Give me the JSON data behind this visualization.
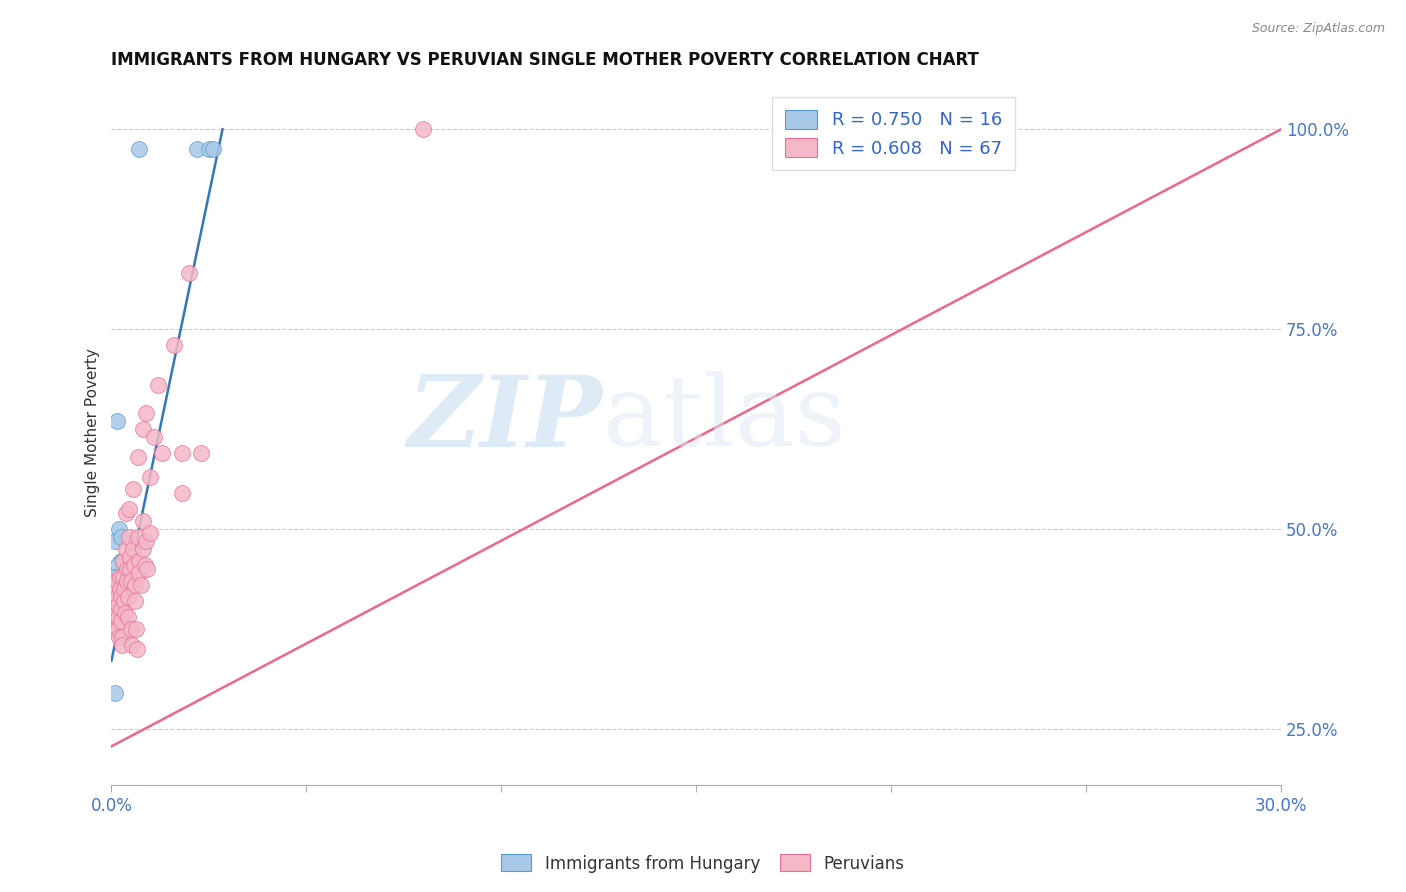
{
  "title": "IMMIGRANTS FROM HUNGARY VS PERUVIAN SINGLE MOTHER POVERTY CORRELATION CHART",
  "source": "Source: ZipAtlas.com",
  "ylabel": "Single Mother Poverty",
  "right_ytick_values": [
    0.25,
    0.5,
    0.75,
    1.0
  ],
  "right_ytick_labels": [
    "25.0%",
    "50.0%",
    "75.0%",
    "100.0%"
  ],
  "legend_blue_label": "Immigrants from Hungary",
  "legend_pink_label": "Peruvians",
  "blue_color": "#a8c8e8",
  "pink_color": "#f4b8c8",
  "blue_edge_color": "#5599cc",
  "pink_edge_color": "#e87090",
  "blue_line_color": "#3377bb",
  "pink_line_color": "#ee6688",
  "watermark_text": "ZIP",
  "watermark_text2": "atlas",
  "xlim": [
    0.0,
    0.3
  ],
  "ylim": [
    0.18,
    1.06
  ],
  "blue_points": [
    [
      0.0008,
      0.485
    ],
    [
      0.0008,
      0.295
    ],
    [
      0.0015,
      0.635
    ],
    [
      0.002,
      0.5
    ],
    [
      0.0025,
      0.49
    ],
    [
      0.0025,
      0.46
    ],
    [
      0.003,
      0.46
    ],
    [
      0.003,
      0.44
    ],
    [
      0.0035,
      0.44
    ],
    [
      0.004,
      0.44
    ],
    [
      0.0018,
      0.455
    ],
    [
      0.022,
      0.975
    ],
    [
      0.025,
      0.975
    ],
    [
      0.026,
      0.975
    ],
    [
      0.007,
      0.975
    ],
    [
      0.001,
      0.44
    ]
  ],
  "pink_points": [
    [
      0.0008,
      0.435
    ],
    [
      0.0008,
      0.42
    ],
    [
      0.001,
      0.41
    ],
    [
      0.001,
      0.395
    ],
    [
      0.001,
      0.385
    ],
    [
      0.0012,
      0.375
    ],
    [
      0.0015,
      0.435
    ],
    [
      0.0015,
      0.415
    ],
    [
      0.0018,
      0.405
    ],
    [
      0.0018,
      0.39
    ],
    [
      0.0018,
      0.375
    ],
    [
      0.002,
      0.365
    ],
    [
      0.0022,
      0.44
    ],
    [
      0.0022,
      0.425
    ],
    [
      0.0025,
      0.415
    ],
    [
      0.0025,
      0.4
    ],
    [
      0.0025,
      0.385
    ],
    [
      0.0028,
      0.365
    ],
    [
      0.0028,
      0.355
    ],
    [
      0.003,
      0.46
    ],
    [
      0.003,
      0.44
    ],
    [
      0.0032,
      0.425
    ],
    [
      0.0032,
      0.41
    ],
    [
      0.0035,
      0.395
    ],
    [
      0.0038,
      0.52
    ],
    [
      0.0038,
      0.475
    ],
    [
      0.004,
      0.45
    ],
    [
      0.004,
      0.435
    ],
    [
      0.0042,
      0.415
    ],
    [
      0.0042,
      0.39
    ],
    [
      0.0045,
      0.525
    ],
    [
      0.0045,
      0.49
    ],
    [
      0.0048,
      0.465
    ],
    [
      0.0048,
      0.45
    ],
    [
      0.005,
      0.435
    ],
    [
      0.005,
      0.375
    ],
    [
      0.0052,
      0.355
    ],
    [
      0.0055,
      0.55
    ],
    [
      0.0055,
      0.475
    ],
    [
      0.0058,
      0.455
    ],
    [
      0.006,
      0.43
    ],
    [
      0.006,
      0.41
    ],
    [
      0.0062,
      0.375
    ],
    [
      0.0065,
      0.35
    ],
    [
      0.0068,
      0.59
    ],
    [
      0.0068,
      0.49
    ],
    [
      0.007,
      0.46
    ],
    [
      0.0072,
      0.445
    ],
    [
      0.0075,
      0.43
    ],
    [
      0.008,
      0.625
    ],
    [
      0.008,
      0.51
    ],
    [
      0.0082,
      0.475
    ],
    [
      0.0085,
      0.455
    ],
    [
      0.009,
      0.645
    ],
    [
      0.009,
      0.485
    ],
    [
      0.0092,
      0.45
    ],
    [
      0.01,
      0.565
    ],
    [
      0.01,
      0.495
    ],
    [
      0.011,
      0.615
    ],
    [
      0.012,
      0.68
    ],
    [
      0.013,
      0.595
    ],
    [
      0.016,
      0.73
    ],
    [
      0.018,
      0.595
    ],
    [
      0.018,
      0.545
    ],
    [
      0.02,
      0.82
    ],
    [
      0.023,
      0.595
    ],
    [
      0.08,
      1.0
    ]
  ],
  "blue_regline_x": [
    0.0,
    0.0285
  ],
  "blue_regline_y": [
    0.335,
    1.0
  ],
  "pink_regline_x": [
    0.0,
    0.3
  ],
  "pink_regline_y": [
    0.228,
    1.0
  ]
}
